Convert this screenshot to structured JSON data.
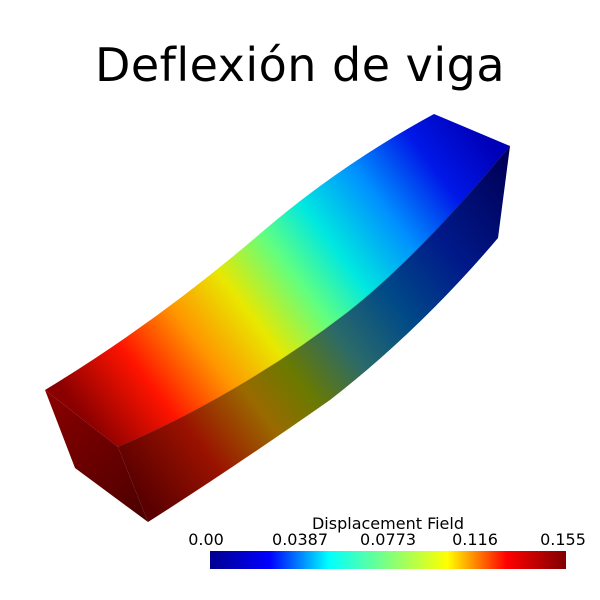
{
  "scene": {
    "title": "Deflexión de viga"
  },
  "colorbar": {
    "title": "Displacement Field",
    "min": 0.0,
    "max": 0.155,
    "ticks": [
      "0.00",
      "0.0387",
      "0.0773",
      "0.116",
      "0.155"
    ],
    "colormap": [
      "#00008f",
      "#0000ff",
      "#00ffff",
      "#7fff7f",
      "#ffff00",
      "#ff0000",
      "#7f0000"
    ]
  },
  "beam": {
    "field": "Displacement Field",
    "fixed_end_color": "#00007a",
    "free_end_color": "#7a0000",
    "faces": [
      "top",
      "side",
      "free-end"
    ]
  }
}
